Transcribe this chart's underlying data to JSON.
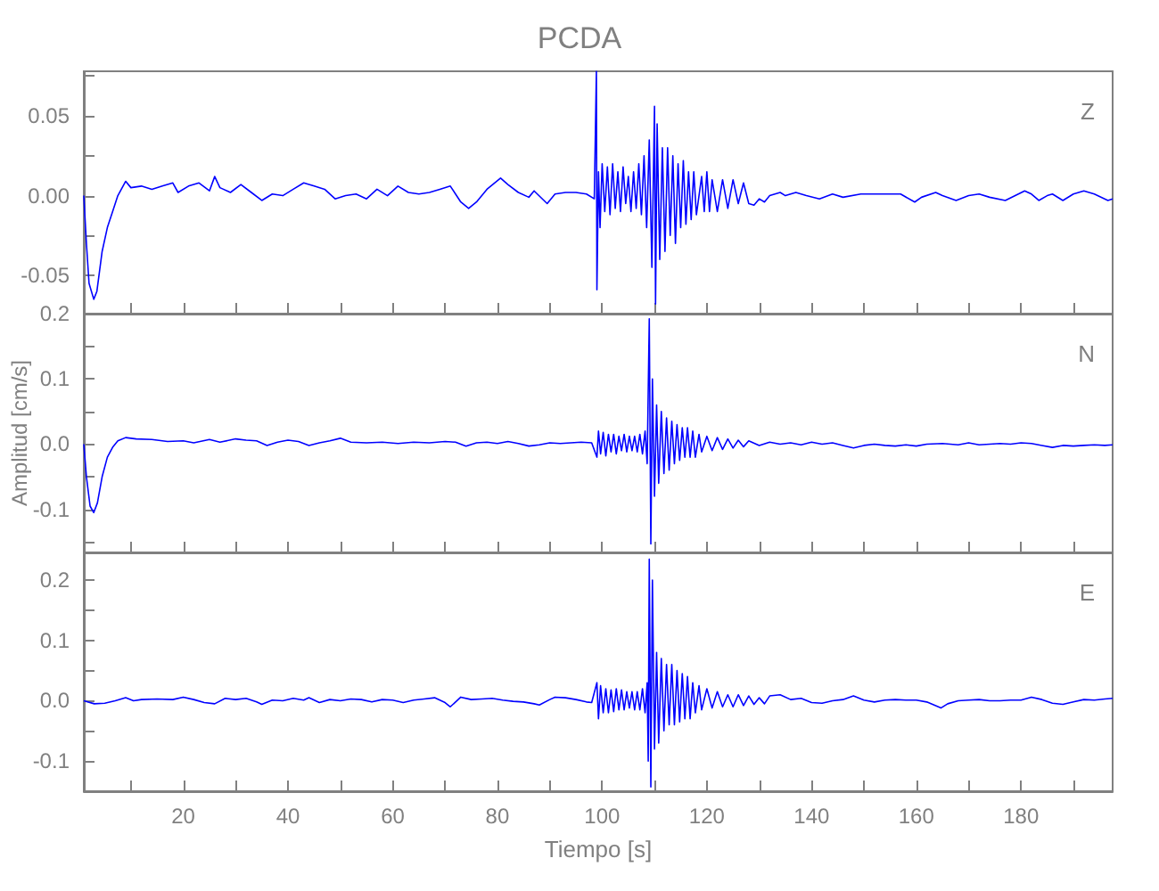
{
  "chart_data": [
    {
      "type": "line",
      "title": "PCDA",
      "tick_labels": "y",
      "xlim": [
        1,
        197.5
      ],
      "xticks": [
        {
          "value": 10,
          "label": null
        },
        20,
        {
          "value": 30,
          "label": null
        },
        40,
        {
          "value": 50,
          "label": null
        },
        60,
        {
          "value": 70,
          "label": null
        },
        80,
        {
          "value": 90,
          "label": null
        },
        100,
        {
          "value": 110,
          "label": null
        },
        120,
        {
          "value": 130,
          "label": null
        },
        140,
        {
          "value": 150,
          "label": null
        },
        160,
        {
          "value": 170,
          "label": null
        },
        180,
        {
          "value": 190,
          "label": null
        }
      ],
      "ylim": [
        -0.074,
        0.078
      ],
      "yticks": [
        -0.05,
        {
          "value": -0.025,
          "label": null
        },
        {
          "value": 0,
          "label": "0.00"
        },
        {
          "value": 0.025,
          "label": null
        },
        0.05,
        {
          "value": 0.075,
          "label": null
        }
      ],
      "series": [
        {
          "name": "Z",
          "color": "#0000ff",
          "x": [
            1,
            1.5,
            2,
            2.9,
            3.5,
            4.5,
            5.5,
            6.5,
            7.5,
            9,
            10,
            12,
            14,
            16,
            18,
            19,
            21,
            23,
            25,
            26,
            27,
            29,
            31,
            33,
            35,
            37,
            39,
            41,
            43,
            45,
            47,
            49,
            51,
            53,
            55,
            57,
            59,
            61,
            63,
            65,
            67,
            69,
            71,
            73,
            74.5,
            76,
            78,
            80.6,
            82,
            84,
            86,
            87,
            89.5,
            91,
            93,
            95,
            97,
            98.5,
            98.9,
            99,
            99.3,
            99.6,
            100,
            100.5,
            101,
            101.5,
            102,
            102.5,
            103,
            103.5,
            104,
            104.5,
            105,
            105.5,
            106,
            106.5,
            107,
            107.5,
            108,
            108.5,
            109,
            109.5,
            110,
            110.2,
            110.5,
            111,
            111.5,
            112,
            112.5,
            113,
            113.5,
            114,
            114.5,
            115,
            115.5,
            116,
            116.5,
            117,
            117.5,
            118,
            119,
            119.5,
            120,
            120.5,
            121,
            122,
            123,
            124,
            125,
            126,
            127,
            128,
            129,
            130,
            131,
            132,
            134,
            135,
            137,
            139,
            141.5,
            144,
            146,
            149.4,
            152,
            155,
            157,
            159.7,
            161,
            163.7,
            165,
            167.6,
            170,
            172,
            174,
            177,
            180.7,
            182,
            183.4,
            185,
            186,
            188,
            190,
            192,
            194,
            196.6,
            197.5
          ],
          "values": [
            0,
            -0.03,
            -0.055,
            -0.065,
            -0.06,
            -0.035,
            -0.02,
            -0.01,
            0,
            0.009,
            0.005,
            0.006,
            0.004,
            0.006,
            0.008,
            0.002,
            0.006,
            0.008,
            0.003,
            0.012,
            0.005,
            0.002,
            0.007,
            0.002,
            -0.003,
            0.001,
            0,
            0.004,
            0.008,
            0.006,
            0.004,
            -0.002,
            0,
            0.001,
            -0.002,
            0.004,
            0,
            0.006,
            0.002,
            0.001,
            0.002,
            0.004,
            0.006,
            -0.004,
            -0.008,
            -0.004,
            0.004,
            0.011,
            0.007,
            0.002,
            -0.001,
            0.003,
            -0.005,
            0.001,
            0.002,
            0.002,
            0.001,
            -0.002,
            0.078,
            -0.059,
            0.015,
            -0.02,
            0.02,
            -0.01,
            0.018,
            -0.012,
            0.02,
            -0.008,
            0.015,
            -0.01,
            0.018,
            -0.005,
            0.012,
            -0.01,
            0.015,
            -0.008,
            0.02,
            -0.012,
            0.025,
            -0.02,
            0.035,
            -0.045,
            0.056,
            -0.068,
            0.045,
            -0.04,
            0.03,
            -0.035,
            0.03,
            -0.025,
            0.025,
            -0.03,
            0.02,
            -0.02,
            0.022,
            -0.018,
            0.015,
            -0.015,
            0.015,
            -0.012,
            0.012,
            -0.01,
            0.015,
            -0.01,
            0.01,
            -0.01,
            0.01,
            -0.008,
            0.01,
            -0.005,
            0.008,
            -0.005,
            -0.006,
            -0.002,
            -0.004,
            0,
            0.002,
            0,
            0.002,
            0,
            -0.002,
            0.001,
            -0.001,
            0.001,
            0.001,
            0.001,
            0.001,
            -0.004,
            -0.001,
            0.002,
            0,
            -0.003,
            0,
            0.001,
            -0.001,
            -0.003,
            0.003,
            0.001,
            -0.003,
            0,
            0.001,
            -0.003,
            0.001,
            0.003,
            0.001,
            -0.003,
            -0.002
          ]
        }
      ]
    },
    {
      "type": "line",
      "ylabel": "Amplitud [cm/s]",
      "tick_labels": "y",
      "xlim": [
        1,
        197.5
      ],
      "xticks": [
        {
          "value": 10,
          "label": null
        },
        20,
        {
          "value": 30,
          "label": null
        },
        40,
        {
          "value": 50,
          "label": null
        },
        60,
        {
          "value": 70,
          "label": null
        },
        80,
        {
          "value": 90,
          "label": null
        },
        100,
        {
          "value": 110,
          "label": null
        },
        120,
        {
          "value": 130,
          "label": null
        },
        140,
        {
          "value": 150,
          "label": null
        },
        160,
        {
          "value": 170,
          "label": null
        },
        180,
        {
          "value": 190,
          "label": null
        }
      ],
      "ylim": [
        -0.166,
        0.2
      ],
      "yticks": [
        {
          "value": -0.15,
          "label": null
        },
        -0.1,
        {
          "value": -0.05,
          "label": null
        },
        {
          "value": 0,
          "label": "0.0"
        },
        {
          "value": 0.05,
          "label": null
        },
        0.1,
        {
          "value": 0.15,
          "label": null
        },
        0.2
      ],
      "series": [
        {
          "name": "N",
          "color": "#0000ff",
          "x": [
            1,
            1.5,
            2.2,
            2.9,
            3.6,
            4.5,
            5.5,
            6.5,
            7.5,
            9,
            11,
            14,
            17,
            20,
            22,
            25,
            27,
            30,
            32,
            34,
            36,
            38,
            40,
            42,
            44,
            46,
            48,
            50,
            52,
            55,
            58,
            61,
            64,
            67,
            70,
            72,
            74,
            76,
            78,
            80,
            82,
            84,
            86,
            88,
            90,
            92,
            94,
            96,
            98,
            99,
            99.3,
            99.7,
            100.2,
            100.7,
            101.2,
            101.7,
            102.2,
            102.7,
            103.2,
            103.7,
            104.2,
            104.7,
            105.2,
            105.7,
            106.2,
            106.7,
            107.2,
            107.7,
            108.2,
            108.6,
            109,
            109.3,
            109.6,
            110,
            110.4,
            110.8,
            111.3,
            111.8,
            112.3,
            112.8,
            113.3,
            113.8,
            114.3,
            114.8,
            115.3,
            115.8,
            116.3,
            116.8,
            117.3,
            117.8,
            118.5,
            119,
            120,
            121,
            122,
            123,
            124,
            125,
            126,
            127,
            128,
            130,
            132,
            134,
            136,
            138,
            140,
            142,
            144,
            146,
            148,
            150,
            152,
            154,
            156,
            158,
            160,
            162,
            165,
            168,
            170,
            172,
            174,
            176,
            178,
            180,
            182,
            184,
            186,
            188,
            190,
            192,
            194,
            196,
            197.5
          ],
          "values": [
            0,
            -0.05,
            -0.095,
            -0.105,
            -0.09,
            -0.05,
            -0.02,
            -0.005,
            0.005,
            0.01,
            0.008,
            0.007,
            0.004,
            0.005,
            0.002,
            0.007,
            0.003,
            0.008,
            0.006,
            0.005,
            -0.002,
            0.003,
            0.006,
            0.004,
            -0.002,
            0.002,
            0.005,
            0.009,
            0.003,
            0.002,
            0.003,
            0.001,
            0.003,
            0.002,
            0.004,
            0.003,
            -0.003,
            0.002,
            0.003,
            0.001,
            0.004,
            0.001,
            -0.003,
            -0.001,
            0.002,
            0.001,
            0.002,
            0.003,
            0.002,
            -0.02,
            0.02,
            -0.015,
            0.018,
            -0.018,
            0.015,
            -0.012,
            0.015,
            -0.015,
            0.012,
            -0.01,
            0.015,
            -0.012,
            0.012,
            -0.01,
            0.012,
            -0.012,
            0.015,
            -0.015,
            0.02,
            -0.03,
            0.192,
            -0.153,
            0.1,
            -0.08,
            0.06,
            -0.06,
            0.05,
            -0.045,
            0.04,
            -0.04,
            0.035,
            -0.03,
            0.03,
            -0.025,
            0.025,
            -0.02,
            0.025,
            -0.02,
            0.02,
            -0.02,
            0.015,
            -0.012,
            0.012,
            -0.01,
            0.01,
            -0.008,
            0.008,
            -0.006,
            0.006,
            -0.004,
            0.005,
            -0.002,
            0.003,
            0,
            0.002,
            -0.001,
            0.003,
            0,
            0.002,
            -0.002,
            -0.006,
            -0.002,
            0,
            -0.002,
            -0.003,
            -0.001,
            -0.003,
            0,
            0.001,
            -0.001,
            0.002,
            -0.001,
            0,
            0.001,
            0,
            0.002,
            0.001,
            -0.002,
            -0.005,
            -0.002,
            -0.003,
            -0.002,
            -0.001,
            -0.002,
            -0.001
          ]
        }
      ]
    },
    {
      "type": "line",
      "xlabel": "Tiempo [s]",
      "xlim": [
        1,
        197.5
      ],
      "xticks": [
        {
          "value": 10,
          "label": null
        },
        20,
        {
          "value": 30,
          "label": null
        },
        40,
        {
          "value": 50,
          "label": null
        },
        60,
        {
          "value": 70,
          "label": null
        },
        80,
        {
          "value": 90,
          "label": null
        },
        100,
        {
          "value": 110,
          "label": null
        },
        120,
        {
          "value": 130,
          "label": null
        },
        140,
        {
          "value": 150,
          "label": null
        },
        160,
        {
          "value": 170,
          "label": null
        },
        180,
        {
          "value": 190,
          "label": null
        }
      ],
      "ylim": [
        -0.15,
        0.246
      ],
      "yticks": [
        {
          "value": -0.15,
          "label": null
        },
        -0.1,
        {
          "value": -0.05,
          "label": null
        },
        {
          "value": 0,
          "label": "0.0"
        },
        {
          "value": 0.05,
          "label": null
        },
        0.1,
        {
          "value": 0.15,
          "label": null
        },
        0.2
      ],
      "series": [
        {
          "name": "E",
          "color": "#0000ff",
          "x": [
            1,
            3,
            5,
            7,
            9,
            10.5,
            12,
            15,
            18,
            20,
            22,
            24,
            26,
            28,
            30,
            32,
            34,
            35,
            37,
            39,
            41,
            43,
            44,
            46,
            48,
            50,
            52,
            54,
            56,
            58,
            60,
            62,
            64,
            66,
            68,
            70,
            71,
            72,
            73,
            75,
            77,
            79,
            81,
            83,
            85,
            87,
            88,
            90,
            91,
            93,
            95,
            97,
            98,
            99,
            99.3,
            99.7,
            100.2,
            100.7,
            101.2,
            101.7,
            102.2,
            102.7,
            103.2,
            103.7,
            104.2,
            104.7,
            105.2,
            105.7,
            106.2,
            106.7,
            107.2,
            107.7,
            108.2,
            108.6,
            108.8,
            109,
            109.3,
            109.6,
            110,
            110.4,
            110.8,
            111.3,
            111.8,
            112.3,
            112.8,
            113.3,
            113.8,
            114.3,
            114.8,
            115.3,
            115.8,
            116.3,
            116.8,
            117.3,
            117.8,
            118.5,
            119,
            120,
            121,
            122,
            123,
            124,
            125,
            126,
            127,
            128,
            129,
            130,
            131,
            132,
            134,
            136,
            138,
            140,
            142,
            144,
            146,
            148,
            150,
            152,
            154,
            156,
            158,
            160,
            162,
            164.7,
            166,
            168,
            170,
            172,
            174,
            176,
            178,
            180,
            182,
            184,
            186,
            188,
            190,
            192,
            194,
            196,
            197.5
          ],
          "values": [
            0,
            -0.005,
            -0.004,
            0,
            0.005,
            0,
            0.002,
            0.003,
            0.002,
            0.006,
            0.002,
            -0.003,
            -0.005,
            0.004,
            0.002,
            0.004,
            -0.002,
            -0.006,
            0.001,
            0,
            0.004,
            0.001,
            0.005,
            -0.003,
            0.002,
            0,
            0.003,
            0.002,
            -0.002,
            0.002,
            0.001,
            -0.003,
            0.001,
            0.003,
            0.005,
            -0.003,
            -0.01,
            -0.002,
            0.006,
            0.002,
            0.003,
            0.004,
            0.001,
            -0.001,
            -0.002,
            -0.005,
            -0.007,
            0.002,
            0.006,
            0.005,
            0.002,
            -0.002,
            -0.003,
            0.03,
            -0.03,
            0.025,
            -0.02,
            0.02,
            -0.02,
            0.018,
            -0.018,
            0.02,
            -0.015,
            0.018,
            -0.015,
            0.015,
            -0.012,
            0.015,
            -0.015,
            0.015,
            -0.015,
            0.02,
            -0.02,
            0.03,
            -0.1,
            0.235,
            -0.143,
            0.2,
            -0.08,
            0.08,
            -0.07,
            0.07,
            -0.05,
            0.06,
            -0.04,
            0.06,
            -0.04,
            0.05,
            -0.035,
            0.045,
            -0.03,
            0.04,
            -0.03,
            0.03,
            -0.02,
            0.025,
            -0.015,
            0.02,
            -0.012,
            0.015,
            -0.01,
            0.01,
            -0.01,
            0.01,
            -0.008,
            0.008,
            -0.006,
            0.005,
            -0.005,
            0.008,
            0.01,
            0.002,
            0.004,
            -0.003,
            -0.004,
            0,
            0.002,
            0.008,
            0.001,
            -0.002,
            0.001,
            0.002,
            0.001,
            0.001,
            -0.002,
            -0.012,
            -0.005,
            0,
            0.001,
            0.002,
            0,
            0,
            0.001,
            0.001,
            0.006,
            0.002,
            -0.004,
            -0.006,
            -0.002,
            0.002,
            0.001,
            0.003,
            0.004
          ]
        }
      ]
    }
  ]
}
